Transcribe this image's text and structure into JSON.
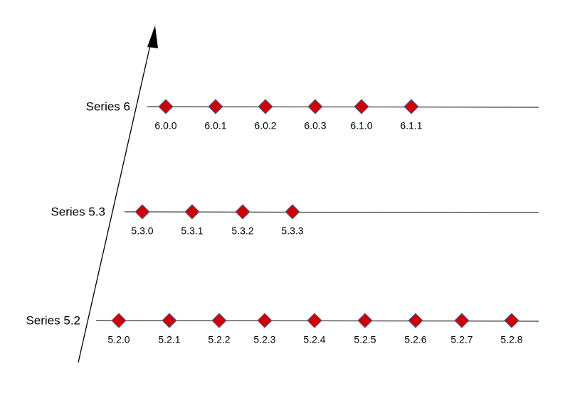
{
  "series": [
    {
      "label": "Series 6",
      "versions": [
        "6.0.0",
        "6.0.1",
        "6.0.2",
        "6.0.3",
        "6.1.0",
        "6.1.1"
      ]
    },
    {
      "label": "Series 5.3",
      "versions": [
        "5.3.0",
        "5.3.1",
        "5.3.2",
        "5.3.3"
      ]
    },
    {
      "label": "Series 5.2",
      "versions": [
        "5.2.0",
        "5.2.1",
        "5.2.2",
        "5.2.3",
        "5.2.4",
        "5.2.5",
        "5.2.6",
        "5.2.7",
        "5.2.8"
      ]
    }
  ]
}
